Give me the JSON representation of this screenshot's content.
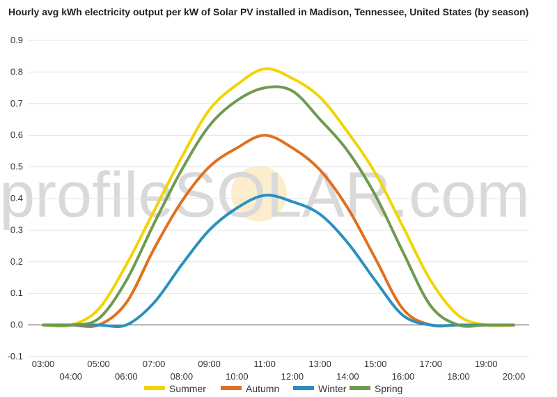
{
  "chart_data": {
    "type": "line",
    "title": "Hourly avg kWh electricity output per kW of Solar PV installed in Madison, Tennessee, United States (by season)",
    "xlabel": "",
    "ylabel": "",
    "x_ticks": [
      "03:00",
      "04:00",
      "05:00",
      "06:00",
      "07:00",
      "08:00",
      "09:00",
      "10:00",
      "11:00",
      "12:00",
      "13:00",
      "14:00",
      "15:00",
      "16:00",
      "17:00",
      "18:00",
      "19:00",
      "20:00"
    ],
    "y_ticks": [
      "0.9",
      "0.8",
      "0.7",
      "0.6",
      "0.5",
      "0.4",
      "0.3",
      "0.2",
      "0.1",
      "0.0",
      "-0.1"
    ],
    "ylim": [
      -0.1,
      0.9
    ],
    "grid": true,
    "legend": "bottom",
    "series": [
      {
        "name": "Summer",
        "color": "#f2d400",
        "x": [
          3,
          4,
          5,
          6,
          7,
          8,
          9,
          10,
          11,
          12,
          13,
          14,
          15,
          16,
          17,
          18,
          19,
          20
        ],
        "values": [
          0.0,
          0.0,
          0.05,
          0.19,
          0.36,
          0.53,
          0.68,
          0.76,
          0.81,
          0.78,
          0.72,
          0.61,
          0.48,
          0.31,
          0.14,
          0.03,
          0.0,
          0.0
        ]
      },
      {
        "name": "Autumn",
        "color": "#e07020",
        "x": [
          3,
          4,
          5,
          6,
          7,
          8,
          9,
          10,
          11,
          12,
          13,
          14,
          15,
          16,
          17,
          18,
          19,
          20
        ],
        "values": [
          0.0,
          0.0,
          0.0,
          0.07,
          0.24,
          0.39,
          0.5,
          0.56,
          0.6,
          0.56,
          0.49,
          0.37,
          0.21,
          0.05,
          0.0,
          0.0,
          0.0,
          0.0
        ]
      },
      {
        "name": "Winter",
        "color": "#2a90c0",
        "x": [
          3,
          4,
          5,
          6,
          7,
          8,
          9,
          10,
          11,
          12,
          13,
          14,
          15,
          16,
          17,
          18,
          19,
          20
        ],
        "values": [
          0.0,
          0.0,
          0.0,
          0.0,
          0.07,
          0.19,
          0.3,
          0.37,
          0.41,
          0.39,
          0.35,
          0.26,
          0.14,
          0.03,
          0.0,
          0.0,
          0.0,
          0.0
        ]
      },
      {
        "name": "Spring",
        "color": "#6f9a50",
        "x": [
          3,
          4,
          5,
          6,
          7,
          8,
          9,
          10,
          11,
          12,
          13,
          14,
          15,
          16,
          17,
          18,
          19,
          20
        ],
        "values": [
          0.0,
          0.0,
          0.02,
          0.14,
          0.32,
          0.49,
          0.63,
          0.71,
          0.75,
          0.74,
          0.65,
          0.55,
          0.41,
          0.23,
          0.06,
          0.0,
          0.0,
          0.0
        ]
      }
    ]
  },
  "watermark": {
    "text": "profileSOLAR.com"
  }
}
